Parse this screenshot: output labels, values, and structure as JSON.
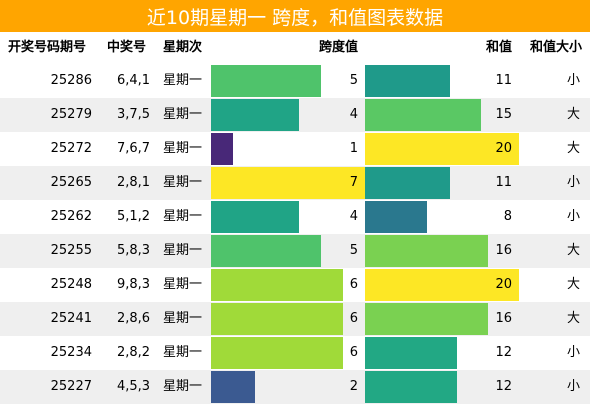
{
  "title": "近10期星期一 跨度，和值图表数据",
  "colors": {
    "title_bg": "#ffa500",
    "title_text": "#ffffff",
    "alt_row": "#efefef"
  },
  "headers": {
    "issue": "开奖号码期号",
    "numbers": "中奖号",
    "weekday": "星期次",
    "span": "跨度值",
    "sum": "和值",
    "size": "和值大小"
  },
  "scale": {
    "span_max": 7,
    "sum_max": 20
  },
  "rows": [
    {
      "issue": "25286",
      "numbers": "6,4,1",
      "weekday": "星期一",
      "span": "5",
      "sum": "11",
      "size": "小",
      "span_color": "#4fc36b",
      "sum_color": "#1f9a8a"
    },
    {
      "issue": "25279",
      "numbers": "3,7,5",
      "weekday": "星期一",
      "span": "4",
      "sum": "15",
      "size": "大",
      "span_color": "#20a486",
      "sum_color": "#5ac864"
    },
    {
      "issue": "25272",
      "numbers": "7,6,7",
      "weekday": "星期一",
      "span": "1",
      "sum": "20",
      "size": "大",
      "span_color": "#482878",
      "sum_color": "#fde725"
    },
    {
      "issue": "25265",
      "numbers": "2,8,1",
      "weekday": "星期一",
      "span": "7",
      "sum": "11",
      "size": "小",
      "span_color": "#fde725",
      "sum_color": "#1f9a8a"
    },
    {
      "issue": "25262",
      "numbers": "5,1,2",
      "weekday": "星期一",
      "span": "4",
      "sum": "8",
      "size": "小",
      "span_color": "#20a486",
      "sum_color": "#2a788e"
    },
    {
      "issue": "25255",
      "numbers": "5,8,3",
      "weekday": "星期一",
      "span": "5",
      "sum": "16",
      "size": "大",
      "span_color": "#4fc36b",
      "sum_color": "#7ad151"
    },
    {
      "issue": "25248",
      "numbers": "9,8,3",
      "weekday": "星期一",
      "span": "6",
      "sum": "20",
      "size": "大",
      "span_color": "#a0da39",
      "sum_color": "#fde725"
    },
    {
      "issue": "25241",
      "numbers": "2,8,6",
      "weekday": "星期一",
      "span": "6",
      "sum": "16",
      "size": "大",
      "span_color": "#a0da39",
      "sum_color": "#7ad151"
    },
    {
      "issue": "25234",
      "numbers": "2,8,2",
      "weekday": "星期一",
      "span": "6",
      "sum": "12",
      "size": "小",
      "span_color": "#a0da39",
      "sum_color": "#22a884"
    },
    {
      "issue": "25227",
      "numbers": "4,5,3",
      "weekday": "星期一",
      "span": "2",
      "sum": "12",
      "size": "小",
      "span_color": "#3b5a91",
      "sum_color": "#22a884"
    }
  ]
}
